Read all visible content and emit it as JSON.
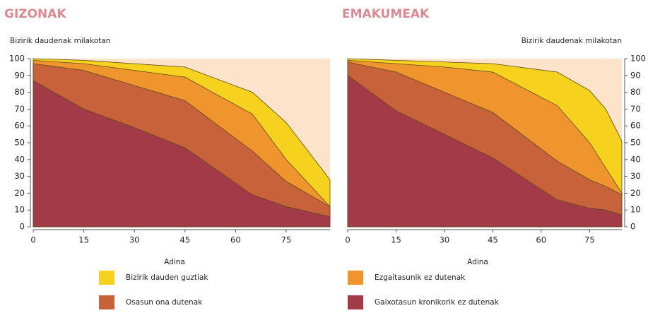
{
  "chart_data": [
    {
      "type": "area",
      "title": "GIZONAK",
      "ylabel": "Bizirik daudenak milakotan",
      "xlabel": "Adina",
      "yaxis_side": "left",
      "background": "#fde3c9",
      "x": [
        0,
        15,
        30,
        45,
        65,
        75,
        88
      ],
      "xlim": [
        0,
        88
      ],
      "xticks": [
        0,
        15,
        30,
        45,
        60,
        75
      ],
      "ylim": [
        0,
        100
      ],
      "yticks": [
        0,
        10,
        20,
        30,
        40,
        50,
        60,
        70,
        80,
        90,
        100
      ],
      "series": [
        {
          "name": "Bizirik dauden guztiak",
          "color": "#f6d21f",
          "values": [
            100,
            99,
            97,
            95,
            80,
            62,
            28
          ]
        },
        {
          "name": "Ezgaitasunik ez dutenak",
          "color": "#f0952d",
          "values": [
            99,
            97,
            93,
            89,
            67,
            40,
            12
          ]
        },
        {
          "name": "Osasun ona dutenak",
          "color": "#c8623a",
          "values": [
            97,
            93,
            84,
            75,
            45,
            27,
            12
          ]
        },
        {
          "name": "Gaixotasun kronikorik ez dutenak",
          "color": "#a33a48",
          "values": [
            87,
            70,
            59,
            47,
            19,
            12,
            6
          ]
        }
      ]
    },
    {
      "type": "area",
      "title": "EMAKUMEAK",
      "ylabel": "Bizirik daudenak milakotan",
      "xlabel": "Adina",
      "yaxis_side": "right",
      "background": "#fde3c9",
      "x": [
        0,
        15,
        30,
        45,
        65,
        75,
        80,
        85
      ],
      "xlim": [
        0,
        85
      ],
      "xticks": [
        0,
        15,
        30,
        45,
        60,
        75
      ],
      "ylim": [
        0,
        100
      ],
      "yticks": [
        0,
        10,
        20,
        30,
        40,
        50,
        60,
        70,
        80,
        90,
        100
      ],
      "series": [
        {
          "name": "Bizirik dauden guztiak",
          "color": "#f6d21f",
          "values": [
            100,
            99,
            98,
            97,
            92,
            81,
            70,
            51
          ]
        },
        {
          "name": "Ezgaitasunik ez dutenak",
          "color": "#f0952d",
          "values": [
            99,
            97,
            95,
            92,
            72,
            50,
            35,
            20
          ]
        },
        {
          "name": "Osasun ona dutenak",
          "color": "#c8623a",
          "values": [
            98,
            92,
            80,
            68,
            39,
            28,
            24,
            19
          ]
        },
        {
          "name": "Gaixotasun kronikorik ez dutenak",
          "color": "#a33a48",
          "values": [
            90,
            69,
            55,
            41,
            16,
            11,
            10,
            7
          ]
        }
      ]
    }
  ]
}
